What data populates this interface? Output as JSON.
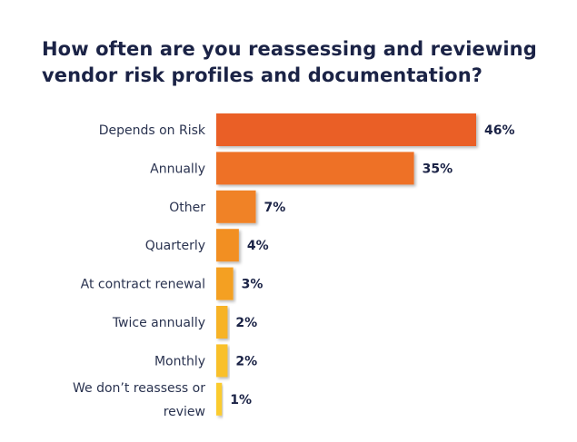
{
  "chart_data": {
    "type": "bar",
    "orientation": "horizontal",
    "title_lines": [
      "How often are you reassessing and reviewing",
      "vendor risk profiles and documentation?"
    ],
    "categories": [
      [
        "Depends on Risk"
      ],
      [
        "Annually"
      ],
      [
        "Other"
      ],
      [
        "Quarterly"
      ],
      [
        "At contract renewal"
      ],
      [
        "Twice annually"
      ],
      [
        "Monthly"
      ],
      [
        "We don’t reassess or",
        "review"
      ]
    ],
    "values": [
      46,
      35,
      7,
      4,
      3,
      2,
      2,
      1
    ],
    "value_labels": [
      "46%",
      "35%",
      "7%",
      "4%",
      "3%",
      "2%",
      "2%",
      "1%"
    ],
    "xlim": [
      0,
      46
    ],
    "unit": "%",
    "bar_colors": [
      "#ea5f27",
      "#ee7127",
      "#f08225",
      "#f28f24",
      "#f4a024",
      "#f7b326",
      "#f9c02a",
      "#fbcb2d"
    ],
    "grid": false,
    "legend": "none"
  }
}
